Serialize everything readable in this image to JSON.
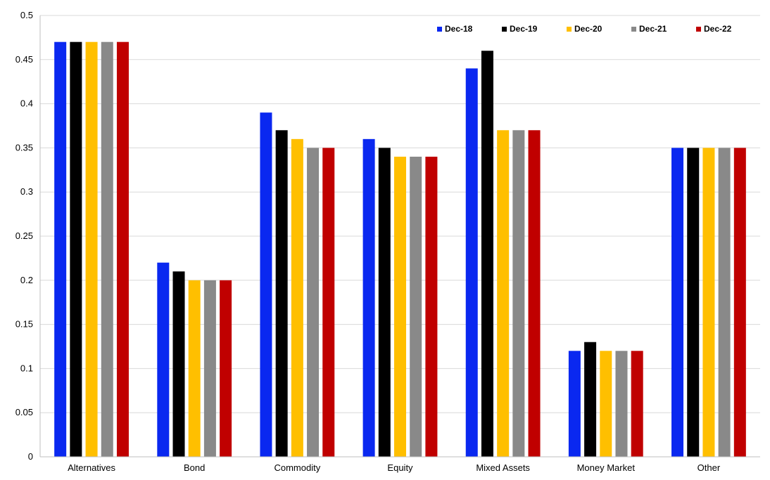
{
  "chart_data": {
    "type": "bar",
    "title": "",
    "xlabel": "",
    "ylabel": "",
    "ylim": [
      0,
      0.5
    ],
    "yticks": [
      0,
      0.05,
      0.1,
      0.15,
      0.2,
      0.25,
      0.3,
      0.35,
      0.4,
      0.45,
      0.5
    ],
    "ytick_labels": [
      "0",
      "0.05",
      "0.1",
      "0.15",
      "0.2",
      "0.25",
      "0.3",
      "0.35",
      "0.4",
      "0.45",
      "0.5"
    ],
    "grid": true,
    "legend_position": "top-right",
    "categories": [
      "Alternatives",
      "Bond",
      "Commodity",
      "Equity",
      "Mixed Assets",
      "Money Market",
      "Other"
    ],
    "series": [
      {
        "name": "Dec-18",
        "color": "#0A28F0",
        "values": [
          0.47,
          0.22,
          0.39,
          0.36,
          0.44,
          0.12,
          0.35
        ]
      },
      {
        "name": "Dec-19",
        "color": "#000000",
        "values": [
          0.47,
          0.21,
          0.37,
          0.35,
          0.46,
          0.13,
          0.35
        ]
      },
      {
        "name": "Dec-20",
        "color": "#FFBF00",
        "values": [
          0.47,
          0.2,
          0.36,
          0.34,
          0.37,
          0.12,
          0.35
        ]
      },
      {
        "name": "Dec-21",
        "color": "#898989",
        "values": [
          0.47,
          0.2,
          0.35,
          0.34,
          0.37,
          0.12,
          0.35
        ]
      },
      {
        "name": "Dec-22",
        "color": "#C00000",
        "values": [
          0.47,
          0.2,
          0.35,
          0.34,
          0.37,
          0.12,
          0.35
        ]
      }
    ]
  }
}
